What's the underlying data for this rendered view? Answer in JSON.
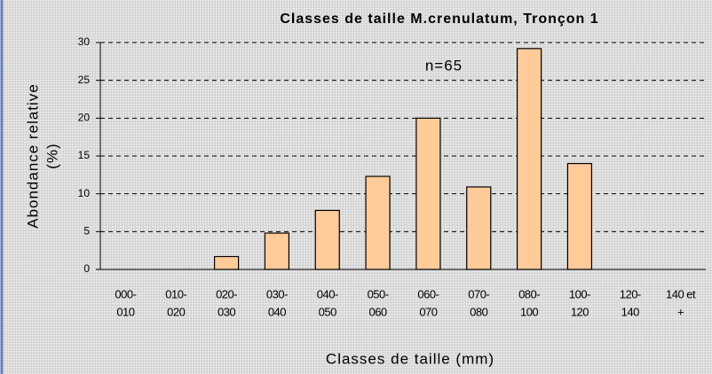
{
  "chart_data": {
    "type": "bar",
    "title": "Classes de taille M.crenulatum, Tronçon 1",
    "annotation": "n=65",
    "y_label": [
      "Abondance relative",
      "(%)"
    ],
    "x_label": "Classes de taille (mm)",
    "categories": [
      [
        "000-",
        "010"
      ],
      [
        "010-",
        "020"
      ],
      [
        "020-",
        "030"
      ],
      [
        "030-",
        "040"
      ],
      [
        "040-",
        "050"
      ],
      [
        "050-",
        "060"
      ],
      [
        "060-",
        "070"
      ],
      [
        "070-",
        "080"
      ],
      [
        "080-",
        "100"
      ],
      [
        "100-",
        "120"
      ],
      [
        "120-",
        "140"
      ],
      [
        "140 et",
        "+"
      ]
    ],
    "values": [
      0,
      0,
      1.7,
      4.8,
      7.8,
      12.3,
      20,
      10.9,
      29.2,
      14,
      0,
      0
    ],
    "color": "#ffcc99",
    "ylim": [
      0,
      30
    ],
    "yticks": [
      0,
      5,
      10,
      15,
      20,
      25,
      30
    ],
    "grid": true
  }
}
